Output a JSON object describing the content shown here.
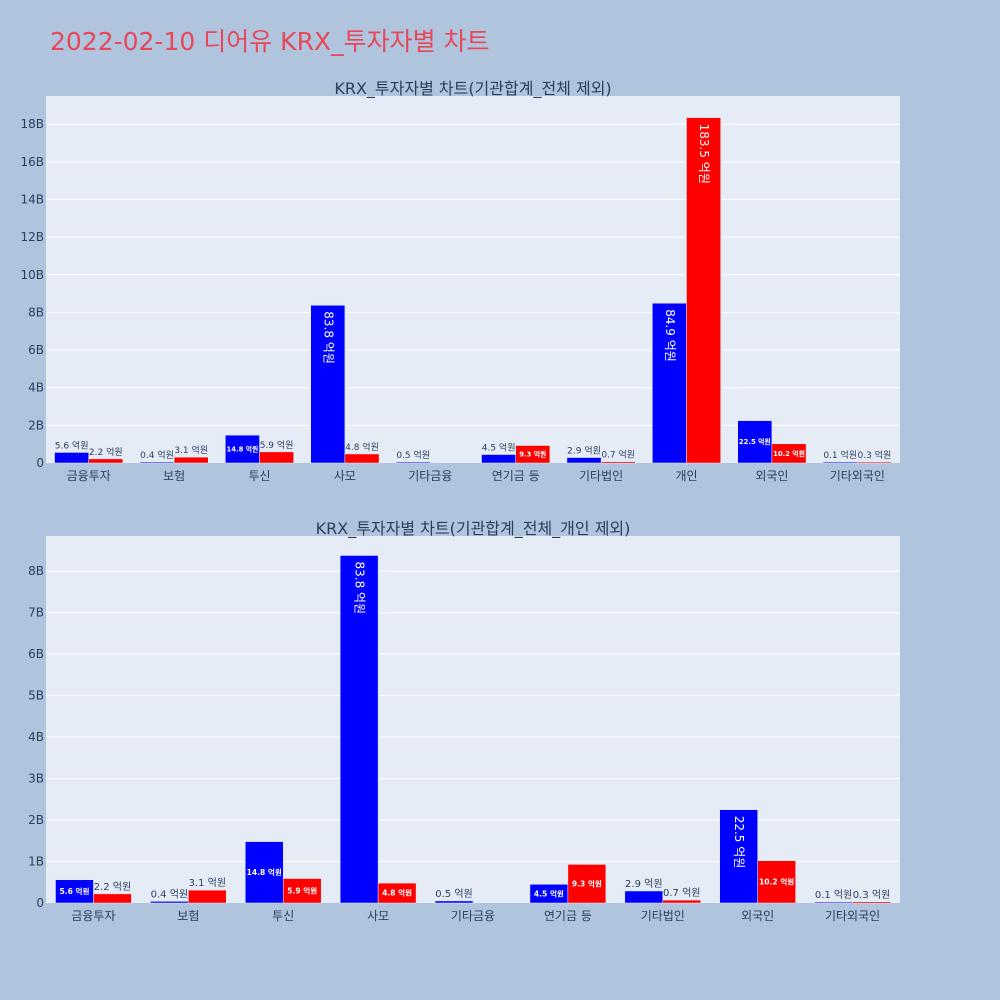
{
  "page": {
    "title": "2022-02-10 디어유 KRX_투자자별 차트"
  },
  "colors": {
    "background": "#b0c4de",
    "plot_bg": "#e5ecf6",
    "grid": "#ffffff",
    "series_1": "#0000ff",
    "series_2": "#ff0000",
    "title": "#e8475a"
  },
  "chart_data": [
    {
      "type": "bar",
      "title": "KRX_투자자별 차트(기관합계_전체 제외)",
      "categories": [
        "금융투자",
        "보험",
        "투신",
        "사모",
        "기타금융",
        "연기금 등",
        "기타법인",
        "개인",
        "외국인",
        "기타외국인"
      ],
      "series": [
        {
          "values": [
            560000000,
            40000000,
            1480000000,
            8380000000,
            50000000,
            450000000,
            290000000,
            8490000000,
            2250000000,
            10000000
          ],
          "labels": [
            "5.6 억원",
            "0.4 억원",
            "14.8 억원",
            "83.8 억원",
            "0.5 억원",
            "4.5 억원",
            "2.9 억원",
            "84.9 억원",
            "22.5 억원",
            "0.1 억원"
          ]
        },
        {
          "values": [
            220000000,
            310000000,
            590000000,
            480000000,
            0,
            930000000,
            70000000,
            18350000000,
            1020000000,
            30000000
          ],
          "labels": [
            "2.2 억원",
            "3.1 억원",
            "5.9 억원",
            "4.8 억원",
            "",
            "9.3 억원",
            "0.7 억원",
            "183.5 억원",
            "10.2 억원",
            "0.3 억원"
          ]
        }
      ],
      "yticks": [
        "0",
        "2B",
        "4B",
        "6B",
        "8B",
        "10B",
        "12B",
        "14B",
        "16B",
        "18B"
      ],
      "ylim": [
        0,
        19500000000
      ],
      "grid": true
    },
    {
      "type": "bar",
      "title": "KRX_투자자별 차트(기관합계_전체_개인 제외)",
      "categories": [
        "금융투자",
        "보험",
        "투신",
        "사모",
        "기타금융",
        "연기금 등",
        "기타법인",
        "외국인",
        "기타외국인"
      ],
      "series": [
        {
          "values": [
            560000000,
            40000000,
            1480000000,
            8380000000,
            50000000,
            450000000,
            290000000,
            2250000000,
            10000000
          ],
          "labels": [
            "5.6 억원",
            "0.4 억원",
            "14.8 억원",
            "83.8 억원",
            "0.5 억원",
            "4.5 억원",
            "2.9 억원",
            "22.5 억원",
            "0.1 억원"
          ]
        },
        {
          "values": [
            220000000,
            310000000,
            590000000,
            480000000,
            0,
            930000000,
            70000000,
            1020000000,
            30000000
          ],
          "labels": [
            "2.2 억원",
            "3.1 억원",
            "5.9 억원",
            "4.8 억원",
            "",
            "9.3 억원",
            "0.7 억원",
            "10.2 억원",
            "0.3 억원"
          ]
        }
      ],
      "yticks": [
        "0",
        "1B",
        "2B",
        "3B",
        "4B",
        "5B",
        "6B",
        "7B",
        "8B"
      ],
      "ylim": [
        0,
        8850000000
      ],
      "grid": true
    }
  ]
}
